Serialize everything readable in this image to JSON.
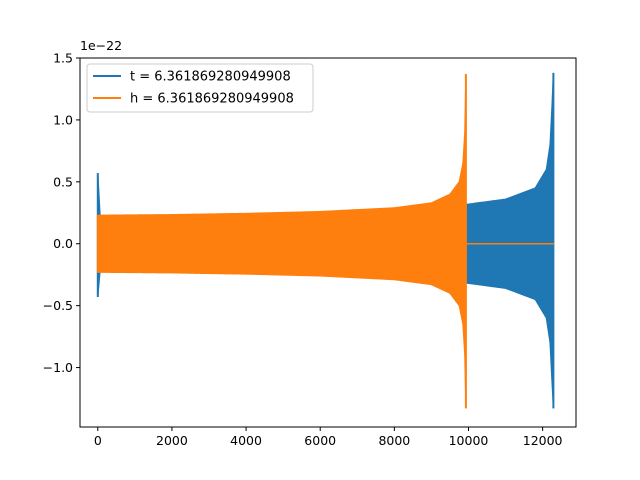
{
  "chart_data": {
    "type": "line",
    "title": "",
    "xlabel": "",
    "ylabel": "",
    "y_scale_label": "1e−22",
    "xlim": [
      -480,
      12900
    ],
    "ylim": [
      -1.48,
      1.5
    ],
    "x_ticks": [
      0,
      2000,
      4000,
      6000,
      8000,
      10000,
      12000
    ],
    "x_tick_labels": [
      "0",
      "2000",
      "4000",
      "6000",
      "8000",
      "10000",
      "12000"
    ],
    "y_ticks": [
      -1.0,
      -0.5,
      0.0,
      0.5,
      1.0,
      1.5
    ],
    "y_tick_labels": [
      "−1.0",
      "−0.5",
      "0.0",
      "0.5",
      "1.0",
      "1.5"
    ],
    "grid": false,
    "legend_position": "top-left",
    "series": [
      {
        "name": "t = 6.361869280949908",
        "color": "#1f77b4",
        "envelope": {
          "x": [
            0,
            20,
            2000,
            4000,
            6000,
            8000,
            10000,
            11000,
            11800,
            12100,
            12200,
            12250,
            12290
          ],
          "upper": [
            0.57,
            0.2,
            0.21,
            0.22,
            0.23,
            0.25,
            0.32,
            0.36,
            0.45,
            0.6,
            0.8,
            1.1,
            1.38
          ],
          "lower": [
            -0.43,
            -0.2,
            -0.21,
            -0.22,
            -0.23,
            -0.25,
            -0.32,
            -0.36,
            -0.45,
            -0.6,
            -0.8,
            -1.1,
            -1.33
          ]
        },
        "tail": {
          "x_start": 12290,
          "x_end": 12310,
          "value": 0.0
        }
      },
      {
        "name": "h = 6.361869280949908",
        "color": "#ff7f0e",
        "envelope": {
          "x": [
            0,
            2000,
            4000,
            6000,
            8000,
            9000,
            9500,
            9750,
            9850,
            9900,
            9930
          ],
          "upper": [
            0.23,
            0.235,
            0.245,
            0.26,
            0.29,
            0.33,
            0.4,
            0.5,
            0.65,
            0.9,
            1.37
          ],
          "lower": [
            -0.23,
            -0.235,
            -0.245,
            -0.26,
            -0.29,
            -0.33,
            -0.4,
            -0.5,
            -0.65,
            -0.9,
            -1.33
          ]
        },
        "tail": {
          "x_start": 9930,
          "x_end": 12310,
          "value": 0.0
        }
      }
    ]
  }
}
